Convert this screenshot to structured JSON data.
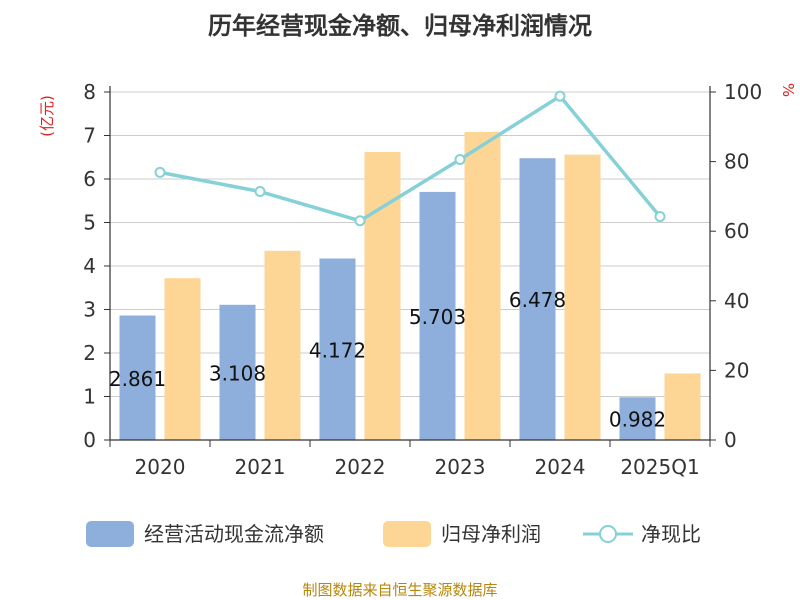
{
  "chart_data": {
    "type": "bar",
    "title": "历年经营现金净额、归母净利润情况",
    "categories": [
      "2020",
      "2021",
      "2022",
      "2023",
      "2024",
      "2025Q1"
    ],
    "y_left": {
      "unit": "(亿元)",
      "ylim": [
        0,
        8
      ],
      "ticks": [
        "0",
        "1",
        "2",
        "3",
        "4",
        "5",
        "6",
        "7",
        "8"
      ]
    },
    "y_right": {
      "unit": "%",
      "ylim": [
        0,
        100
      ],
      "ticks": [
        "0",
        "20",
        "40",
        "60",
        "80",
        "100"
      ]
    },
    "series": [
      {
        "name": "经营活动现金流净额",
        "type": "bar",
        "axis": "left",
        "color": "#8eaedb",
        "values": [
          2.861,
          3.108,
          4.172,
          5.703,
          6.478,
          0.982
        ],
        "labels": [
          "2.861",
          "3.108",
          "4.172",
          "5.703",
          "6.478",
          "0.982"
        ]
      },
      {
        "name": "归母净利润",
        "type": "bar",
        "axis": "left",
        "color": "#fdd695",
        "values": [
          3.72,
          4.35,
          6.62,
          7.08,
          6.56,
          1.53
        ]
      },
      {
        "name": "净现比",
        "type": "line",
        "axis": "right",
        "color": "#86d0d8",
        "values": [
          76.9,
          71.4,
          63.0,
          80.6,
          98.8,
          64.2
        ]
      }
    ],
    "grid": true,
    "legend_position": "bottom"
  },
  "source_text": "制图数据来自恒生聚源数据库"
}
